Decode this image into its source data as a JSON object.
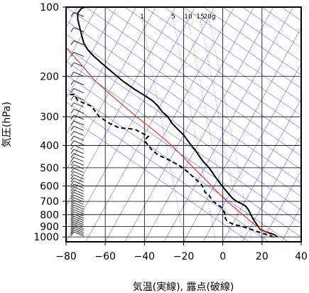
{
  "chart_data": {
    "type": "line",
    "title": "",
    "xlabel": "気温(実線), 露点(破線)",
    "ylabel": "気圧(hPa)",
    "xlim": [
      -80,
      40
    ],
    "ylim": [
      1050,
      100
    ],
    "y_scale": "log",
    "x_ticks": [
      -80,
      -60,
      -40,
      -20,
      0,
      20,
      40
    ],
    "x_tick_labels": [
      "−80",
      "−60",
      "−40",
      "−20",
      "0",
      "20",
      "40"
    ],
    "y_ticks": [
      100,
      200,
      300,
      400,
      500,
      600,
      700,
      800,
      900,
      1000
    ],
    "y_tick_labels": [
      "100",
      "200",
      "300",
      "400",
      "500",
      "600",
      "700",
      "800",
      "900",
      "1000"
    ],
    "mixing_ratio_labels": [
      {
        "text": "1",
        "value": 1
      },
      {
        "text": "5",
        "value": 5
      },
      {
        "text": "10",
        "value": 10
      },
      {
        "text": "15",
        "value": 15
      },
      {
        "text": "20g",
        "value": 20
      }
    ],
    "colors": {
      "temperature": "#000000",
      "dewpoint": "#000000",
      "parcel": "#e53030",
      "grid": "#000000",
      "isotherm": "#5a6ee6",
      "adiabat": "#5a6ee6",
      "mixing_ratio": "#000000",
      "wind_barb": "#000000"
    },
    "series": [
      {
        "role": "temperature",
        "style": "solid",
        "points": [
          [
            28,
            1000
          ],
          [
            26,
            975
          ],
          [
            22,
            950
          ],
          [
            19,
            925
          ],
          [
            18,
            900
          ],
          [
            17,
            875
          ],
          [
            16,
            850
          ],
          [
            15,
            820
          ],
          [
            14,
            790
          ],
          [
            13,
            760
          ],
          [
            12,
            740
          ],
          [
            10,
            720
          ],
          [
            7,
            700
          ],
          [
            5,
            680
          ],
          [
            3,
            650
          ],
          [
            1,
            620
          ],
          [
            -1,
            590
          ],
          [
            -3,
            560
          ],
          [
            -5,
            530
          ],
          [
            -7,
            500
          ],
          [
            -10,
            470
          ],
          [
            -12,
            445
          ],
          [
            -14,
            420
          ],
          [
            -16,
            400
          ],
          [
            -18,
            380
          ],
          [
            -20,
            360
          ],
          [
            -23,
            340
          ],
          [
            -26,
            320
          ],
          [
            -28,
            300
          ],
          [
            -31,
            285
          ],
          [
            -33,
            270
          ],
          [
            -36,
            255
          ],
          [
            -39,
            245
          ],
          [
            -45,
            228
          ],
          [
            -51,
            210
          ],
          [
            -57,
            190
          ],
          [
            -62,
            175
          ],
          [
            -66,
            163
          ],
          [
            -69,
            153
          ],
          [
            -71,
            143
          ],
          [
            -72,
            133
          ],
          [
            -73,
            123
          ],
          [
            -74,
            113
          ],
          [
            -74,
            106
          ],
          [
            -72,
            101
          ],
          [
            -70,
            100
          ]
        ]
      },
      {
        "role": "dewpoint",
        "style": "dashed",
        "points": [
          [
            26,
            1000
          ],
          [
            22,
            975
          ],
          [
            18,
            950
          ],
          [
            14,
            925
          ],
          [
            10,
            900
          ],
          [
            6,
            885
          ],
          [
            4,
            870
          ],
          [
            2,
            850
          ],
          [
            1,
            820
          ],
          [
            1,
            790
          ],
          [
            0,
            760
          ],
          [
            -1,
            740
          ],
          [
            -3,
            720
          ],
          [
            -5,
            700
          ],
          [
            -6,
            680
          ],
          [
            -7,
            660
          ],
          [
            -9,
            640
          ],
          [
            -10,
            610
          ],
          [
            -11,
            590
          ],
          [
            -14,
            560
          ],
          [
            -18,
            520
          ],
          [
            -22,
            490
          ],
          [
            -28,
            460
          ],
          [
            -33,
            440
          ],
          [
            -36,
            420
          ],
          [
            -38,
            400
          ],
          [
            -40,
            380
          ],
          [
            -38,
            365
          ],
          [
            -45,
            340
          ],
          [
            -53,
            335
          ],
          [
            -58,
            320
          ],
          [
            -63,
            300
          ],
          [
            -65,
            285
          ],
          [
            -67,
            270
          ],
          [
            -74,
            255
          ],
          [
            -76,
            240
          ],
          [
            -80,
            240
          ]
        ]
      },
      {
        "role": "parcel",
        "style": "solid",
        "points": [
          [
            26,
            1000
          ],
          [
            23,
            960
          ],
          [
            19,
            920
          ],
          [
            16,
            880
          ],
          [
            13,
            840
          ],
          [
            11,
            810
          ],
          [
            7,
            760
          ],
          [
            3,
            710
          ],
          [
            -1,
            660
          ],
          [
            -5,
            610
          ],
          [
            -9,
            560
          ],
          [
            -14,
            510
          ],
          [
            -19,
            460
          ],
          [
            -26,
            400
          ],
          [
            -34,
            350
          ],
          [
            -44,
            300
          ],
          [
            -55,
            250
          ],
          [
            -65,
            210
          ],
          [
            -73,
            175
          ],
          [
            -80,
            150
          ]
        ]
      }
    ],
    "wind_barbs_note": "wind barbs plotted along the left side at x ≈ −70 for each pressure level"
  }
}
